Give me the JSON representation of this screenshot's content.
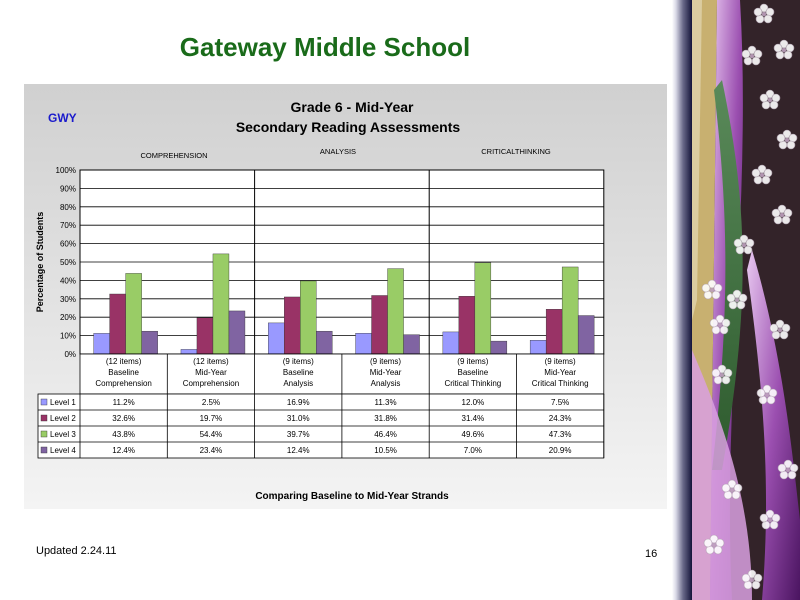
{
  "slide": {
    "title": "Gateway Middle School",
    "footer_updated": "Updated  2.24.11",
    "page_number": "16"
  },
  "chart_data": {
    "type": "bar",
    "code_label": "GWY",
    "title": "Grade 6 - Mid-Year",
    "subtitle": "Secondary Reading Assessments",
    "ylabel": "Percentage of Students",
    "xlabel": "Comparing Baseline to Mid-Year Strands",
    "ylim": [
      0,
      100
    ],
    "yticks": [
      "0%",
      "10%",
      "20%",
      "30%",
      "40%",
      "50%",
      "60%",
      "70%",
      "80%",
      "90%",
      "100%"
    ],
    "strand_labels": [
      "COMPREHENSION",
      "ANALYSIS",
      "CRITICALTHINKING"
    ],
    "categories": [
      [
        "(12 items)",
        "Baseline",
        "Comprehension"
      ],
      [
        "(12 items)",
        "Mid-Year",
        "Comprehension"
      ],
      [
        "(9 items)",
        "Baseline",
        "Analysis"
      ],
      [
        "(9 items)",
        "Mid-Year",
        "Analysis"
      ],
      [
        "(9 items)",
        "Baseline",
        "Critical Thinking"
      ],
      [
        "(9 items)",
        "Mid-Year",
        "Critical Thinking"
      ]
    ],
    "series": [
      {
        "name": "Level 1",
        "color": "#9999ff",
        "values": [
          11.2,
          2.5,
          16.9,
          11.3,
          12.0,
          7.5
        ],
        "labels": [
          "11.2%",
          "2.5%",
          "16.9%",
          "11.3%",
          "12.0%",
          "7.5%"
        ]
      },
      {
        "name": "Level 2",
        "color": "#993366",
        "values": [
          32.6,
          19.7,
          31.0,
          31.8,
          31.4,
          24.3
        ],
        "labels": [
          "32.6%",
          "19.7%",
          "31.0%",
          "31.8%",
          "31.4%",
          "24.3%"
        ]
      },
      {
        "name": "Level 3",
        "color": "#99cc66",
        "values": [
          43.8,
          54.4,
          39.7,
          46.4,
          49.6,
          47.3
        ],
        "labels": [
          "43.8%",
          "54.4%",
          "39.7%",
          "46.4%",
          "49.6%",
          "47.3%"
        ]
      },
      {
        "name": "Level 4",
        "color": "#8064a2",
        "values": [
          12.4,
          23.4,
          12.4,
          10.5,
          7.0,
          20.9
        ],
        "labels": [
          "12.4%",
          "23.4%",
          "12.4%",
          "10.5%",
          "7.0%",
          "20.9%"
        ]
      }
    ],
    "grid": true,
    "legend": "data-table"
  }
}
